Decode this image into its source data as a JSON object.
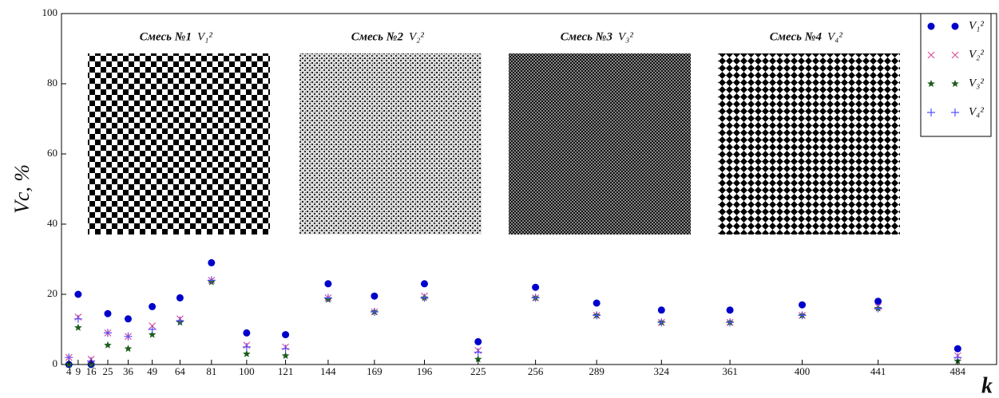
{
  "chart_data": {
    "type": "scatter",
    "ylabel": "Vc, %",
    "xlabel": "k",
    "x": [
      4,
      9,
      16,
      25,
      36,
      49,
      64,
      81,
      100,
      121,
      144,
      169,
      196,
      225,
      256,
      289,
      324,
      361,
      400,
      441,
      484
    ],
    "xlim": [
      0,
      505
    ],
    "xticks": [
      4,
      9,
      16,
      25,
      36,
      49,
      64,
      81,
      100,
      121,
      144,
      169,
      196,
      225,
      256,
      289,
      324,
      361,
      400,
      441,
      484
    ],
    "ylim": [
      0,
      100
    ],
    "yticks": [
      0,
      20,
      40,
      60,
      80,
      100
    ],
    "grid": false,
    "legend": "upper right",
    "series": [
      {
        "name": "V₁²",
        "color": "#0000cc",
        "marker": "circle",
        "values": [
          0,
          20,
          0,
          14.5,
          13,
          16.5,
          19,
          29,
          9,
          8.5,
          23,
          19.5,
          23,
          6.5,
          22,
          17.5,
          15.5,
          15.5,
          17,
          18,
          4.5
        ]
      },
      {
        "name": "V₂²",
        "color": "#e0509a",
        "marker": "x",
        "values": [
          2,
          13.5,
          1.5,
          9,
          8,
          11,
          13,
          24,
          5.5,
          5,
          19,
          15,
          19.5,
          4,
          19,
          14,
          12,
          12,
          14,
          16.5,
          2.5
        ]
      },
      {
        "name": "V₃²",
        "color": "#1e5e1e",
        "marker": "star",
        "values": [
          0,
          10.5,
          0,
          5.5,
          4.5,
          8.5,
          12,
          23.5,
          3,
          2.5,
          18.5,
          15,
          19,
          1.5,
          19,
          14,
          12,
          12,
          14,
          16,
          1
        ]
      },
      {
        "name": "V₄²",
        "color": "#5050ff",
        "marker": "plus",
        "values": [
          2,
          13,
          1,
          9,
          8,
          10,
          12.5,
          24,
          5,
          4.5,
          19,
          15,
          19,
          3.5,
          19,
          14,
          12,
          12,
          14,
          16,
          2
        ]
      }
    ]
  },
  "insets": [
    {
      "title": "Смесь №1",
      "label": "V₁²"
    },
    {
      "title": "Смесь №2",
      "label": "V₂²"
    },
    {
      "title": "Смесь №3",
      "label": "V₃²"
    },
    {
      "title": "Смесь №4",
      "label": "V₄²"
    }
  ]
}
